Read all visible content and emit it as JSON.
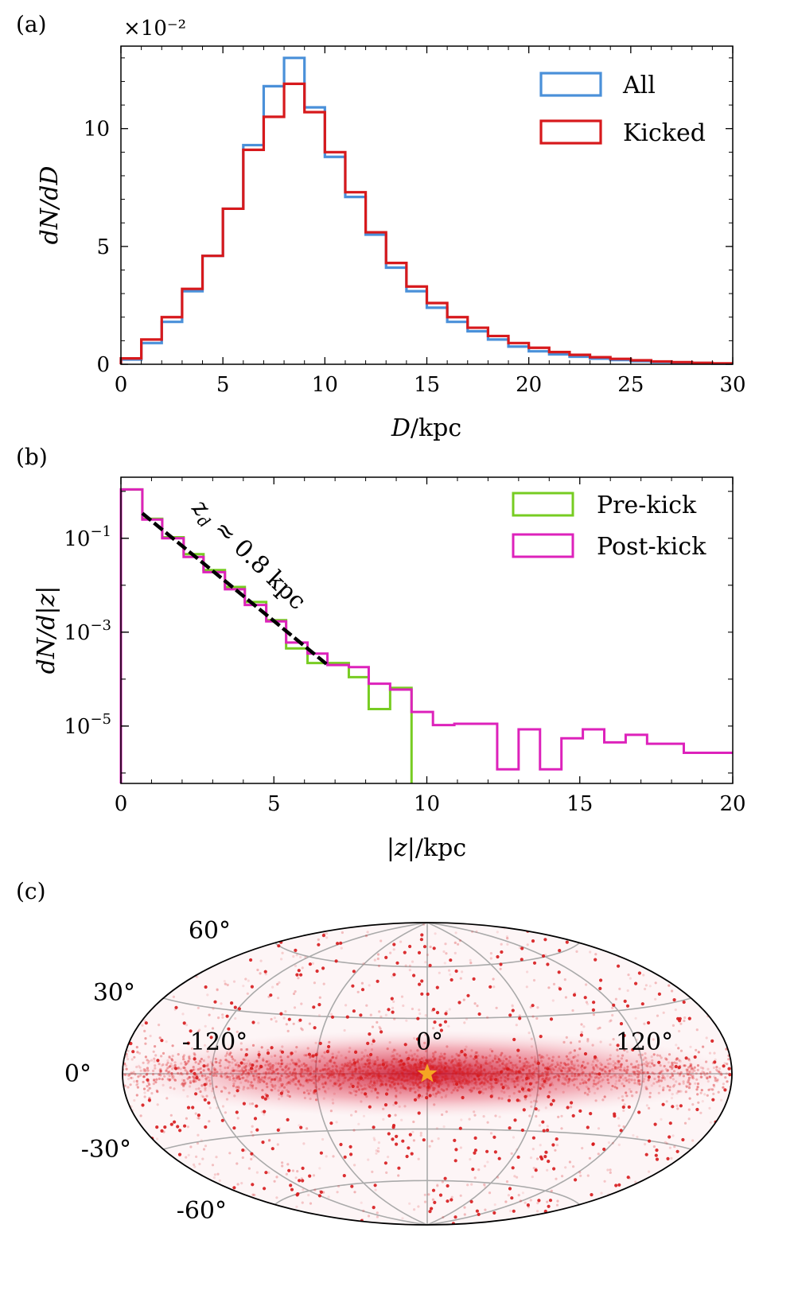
{
  "chart_data": [
    {
      "panel_label": "(a)",
      "type": "step",
      "scale_note": "×10⁻²",
      "xlabel": "D/kpc",
      "ylabel": "dN/dD",
      "xlim": [
        0,
        30
      ],
      "ylim": [
        0,
        13.5
      ],
      "xticks": [
        "0",
        "5",
        "10",
        "15",
        "20",
        "25",
        "30"
      ],
      "yticks": [
        "0",
        "5",
        "10"
      ],
      "legend_position": "top-right",
      "bin_edges": [
        0,
        1,
        2,
        3,
        4,
        5,
        6,
        7,
        8,
        9,
        10,
        11,
        12,
        13,
        14,
        15,
        16,
        17,
        18,
        19,
        20,
        21,
        22,
        23,
        24,
        25,
        26,
        27,
        28,
        29,
        30
      ],
      "series": [
        {
          "name": "All",
          "color": "#4a90d9",
          "values": [
            0.2,
            0.9,
            1.8,
            3.1,
            4.6,
            6.6,
            9.3,
            11.8,
            13.0,
            10.9,
            8.8,
            7.1,
            5.5,
            4.1,
            3.1,
            2.4,
            1.8,
            1.4,
            1.05,
            0.75,
            0.55,
            0.42,
            0.32,
            0.24,
            0.18,
            0.13,
            0.09,
            0.07,
            0.05,
            0.03
          ]
        },
        {
          "name": "Kicked",
          "color": "#d7191c",
          "values": [
            0.25,
            1.05,
            2.0,
            3.2,
            4.6,
            6.6,
            9.1,
            10.5,
            11.9,
            10.7,
            9.0,
            7.3,
            5.6,
            4.3,
            3.3,
            2.6,
            2.0,
            1.55,
            1.2,
            0.9,
            0.7,
            0.52,
            0.4,
            0.3,
            0.23,
            0.17,
            0.12,
            0.09,
            0.06,
            0.04
          ]
        }
      ]
    },
    {
      "panel_label": "(b)",
      "type": "step",
      "yscale": "log",
      "xlabel": "|z|/kpc",
      "ylabel": "dN/d|z|",
      "xlim": [
        0,
        20
      ],
      "ylim": [
        6e-07,
        2
      ],
      "xticks": [
        "0",
        "5",
        "10",
        "15",
        "20"
      ],
      "yticks": [
        {
          "value": 0.1,
          "base": "10",
          "exp": "−1"
        },
        {
          "value": 0.001,
          "base": "10",
          "exp": "−3"
        },
        {
          "value": 1e-05,
          "base": "10",
          "exp": "−5"
        }
      ],
      "legend_position": "top-right",
      "annotation": {
        "text": "z_d ≈ 0.8 kpc",
        "sub": "d",
        "fit": {
          "x": [
            0.7,
            6.8
          ],
          "y": [
            0.34,
            0.00019
          ]
        }
      },
      "series": [
        {
          "name": "Pre-kick",
          "color": "#77cc22",
          "edges": [
            0,
            0.7,
            1.35,
            2.05,
            2.7,
            3.4,
            4.05,
            4.75,
            5.4,
            6.1,
            6.75,
            7.45,
            8.1,
            8.8,
            9.5
          ],
          "values": [
            1.1,
            0.26,
            0.105,
            0.046,
            0.021,
            0.0092,
            0.0044,
            0.0018,
            0.00045,
            0.00022,
            0.00022,
            0.00011,
            2.3e-05,
            6.5e-05
          ]
        },
        {
          "name": "Post-kick",
          "color": "#dd22bb",
          "edges": [
            0,
            0.7,
            1.35,
            2.05,
            2.7,
            3.4,
            4.05,
            4.75,
            5.4,
            6.1,
            6.75,
            7.45,
            8.1,
            8.8,
            9.5,
            10.2,
            10.9,
            12.3,
            13.0,
            13.7,
            14.4,
            15.1,
            15.8,
            16.5,
            17.2,
            18.4,
            20.0
          ],
          "values": [
            1.1,
            0.25,
            0.1,
            0.04,
            0.019,
            0.0082,
            0.0038,
            0.0017,
            0.0006,
            0.00035,
            0.0002,
            0.00018,
            8e-05,
            6e-05,
            2e-05,
            1.05e-05,
            1.12e-05,
            1.2e-06,
            8.5e-06,
            1.2e-06,
            5.5e-06,
            8.5e-06,
            4.5e-06,
            6.5e-06,
            4.2e-06,
            2.7e-06
          ]
        }
      ]
    },
    {
      "panel_label": "(c)",
      "type": "scatter",
      "projection": "Hammer-Aitoff (galactic l, b)",
      "point_color": "#d7191c",
      "marker": {
        "color": "#f5a623",
        "shape": "star",
        "l": 0,
        "b": 0
      },
      "longitude_labels": [
        "-120°",
        "0°",
        "120°"
      ],
      "latitude_labels": [
        "60°",
        "30°",
        "0°",
        "-30°",
        "-60°"
      ],
      "grid": true
    }
  ]
}
